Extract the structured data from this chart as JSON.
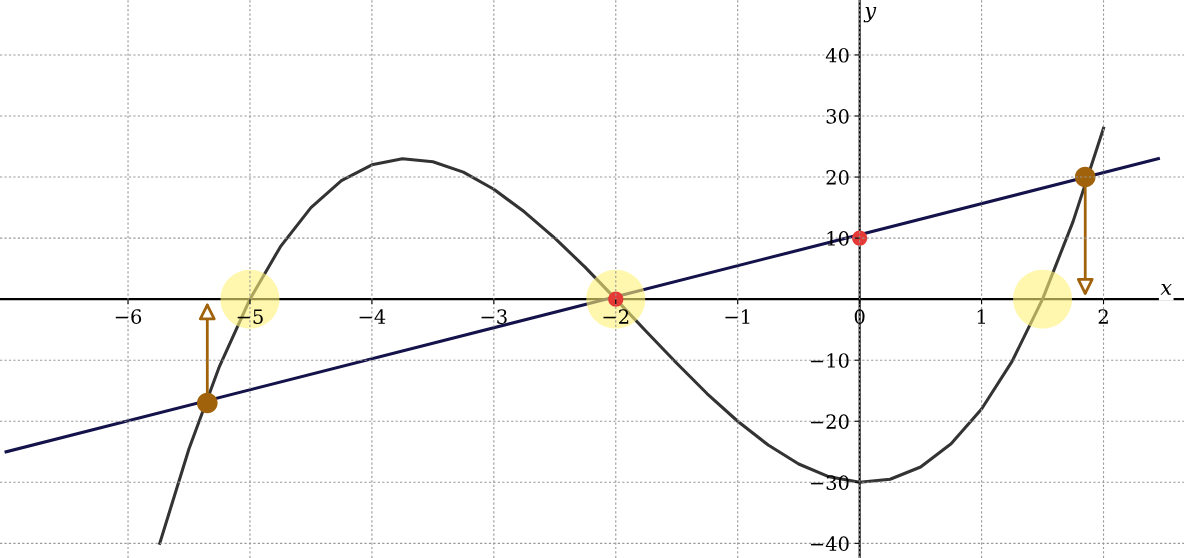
{
  "chart_data": {
    "type": "line",
    "xlabel": "x",
    "ylabel": "y",
    "xlim": [
      -7.05,
      2.66
    ],
    "ylim": [
      -42.4,
      49
    ],
    "xticks": [
      {
        "value": -6,
        "label": "−6"
      },
      {
        "value": -5,
        "label": "−5"
      },
      {
        "value": -4,
        "label": "−4"
      },
      {
        "value": -3,
        "label": "−3"
      },
      {
        "value": -2,
        "label": "−2"
      },
      {
        "value": -1,
        "label": "−1"
      },
      {
        "value": 0,
        "label": "0"
      },
      1,
      2
    ],
    "yticks": [
      {
        "value": -40,
        "label": "−40"
      },
      {
        "value": -30,
        "label": "−30"
      },
      {
        "value": -20,
        "label": "−20"
      },
      {
        "value": -10,
        "label": "−10"
      },
      10,
      20,
      30,
      40
    ],
    "grid": true,
    "marker": "none",
    "line_style": "solid",
    "series": [
      {
        "color": "#333333",
        "x": [
          -5.74,
          -5.5,
          -5.25,
          -5,
          -4.75,
          -4.5,
          -4.25,
          -4,
          -3.75,
          -3.5,
          -3.25,
          -3,
          -2.75,
          -2.5,
          -2.25,
          -2,
          -1.75,
          -1.5,
          -1.25,
          -1,
          -0.75,
          -0.5,
          -0.25,
          0,
          0.25,
          0.5,
          0.75,
          1,
          1.25,
          1.5,
          1.75,
          2
        ],
        "values": [
          -40,
          -24.5,
          -11,
          0,
          8.6,
          15,
          19.4,
          22,
          23,
          22.5,
          20.8,
          18,
          14.3,
          10,
          5.2,
          0,
          -5.3,
          -10.5,
          -15.5,
          -20,
          -23.9,
          -27,
          -29.1,
          -30,
          -29.5,
          -27.5,
          -23.7,
          -18,
          -10.2,
          0,
          12.7,
          28
        ]
      },
      {
        "color": "#14124a",
        "x": [
          -7,
          2.45
        ],
        "values": [
          -25,
          23
        ]
      },
      {
        "type": "scatter",
        "marker": "circle",
        "color": "#fff176",
        "x": [
          -5,
          -2,
          1.5
        ],
        "values": [
          0,
          0,
          0
        ]
      },
      {
        "type": "scatter",
        "marker": "circle",
        "color": "#e53935",
        "x": [
          -2,
          0
        ],
        "values": [
          0,
          10
        ]
      },
      {
        "type": "scatter",
        "marker": "circle",
        "color": "#a0620a",
        "x": [
          -5.35,
          1.85
        ],
        "values": [
          -17,
          20
        ]
      }
    ]
  }
}
